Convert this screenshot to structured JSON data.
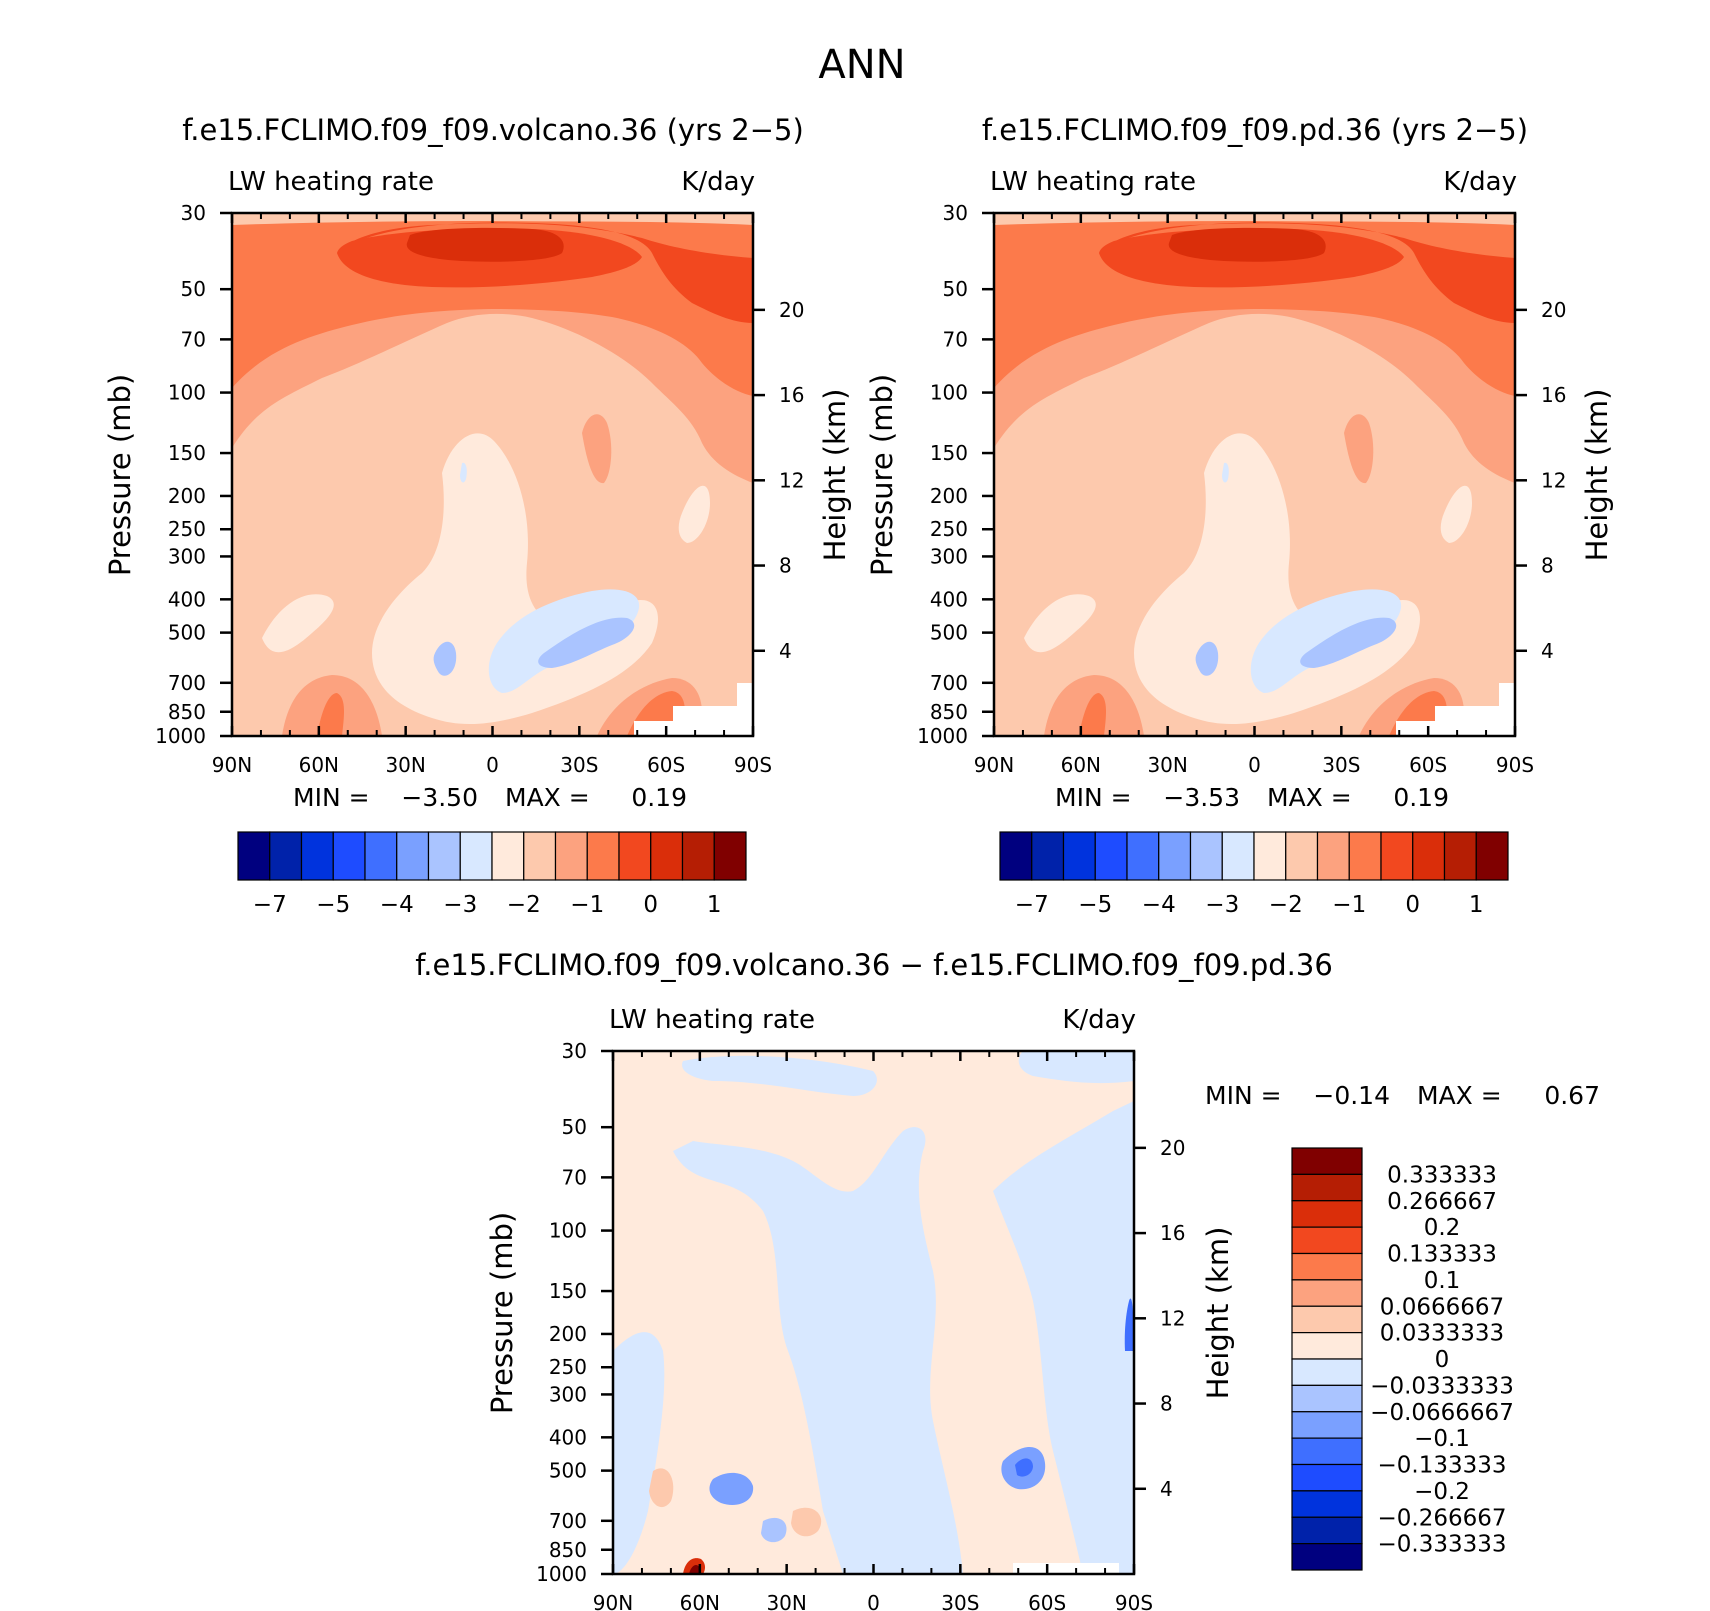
{
  "figure": {
    "title": "ANN"
  },
  "panels": [
    {
      "title": "f.e15.FCLIMO.f09_f09.volcano.36 (yrs 2−5)",
      "left_label": "LW heating rate",
      "right_label": "K/day",
      "ylabel": "Pressure (mb)",
      "y2label": "Height (km)",
      "min_text": "MIN =",
      "min_value": "−3.50",
      "max_text": "MAX =",
      "max_value": "0.19"
    },
    {
      "title": "f.e15.FCLIMO.f09_f09.pd.36 (yrs 2−5)",
      "left_label": "LW heating rate",
      "right_label": "K/day",
      "ylabel": "Pressure (mb)",
      "y2label": "Height (km)",
      "min_text": "MIN =",
      "min_value": "−3.53",
      "max_text": "MAX =",
      "max_value": "0.19"
    },
    {
      "title": "f.e15.FCLIMO.f09_f09.volcano.36 − f.e15.FCLIMO.f09_f09.pd.36",
      "left_label": "LW heating rate",
      "right_label": "K/day",
      "ylabel": "Pressure (mb)",
      "y2label": "Height (km)",
      "min_text": "MIN =",
      "min_value": "−0.14",
      "max_text": "MAX =",
      "max_value": "0.67"
    }
  ],
  "chart_data": [
    {
      "type": "heatmap",
      "title": "f.e15.FCLIMO.f09_f09.volcano.36 (yrs 2−5)",
      "variable": "LW heating rate",
      "units": "K/day",
      "xlabel": "",
      "ylabel": "Pressure (mb)",
      "y2label": "Height (km)",
      "x_ticks": [
        "90N",
        "60N",
        "30N",
        "0",
        "30S",
        "60S",
        "90S"
      ],
      "y_ticks": [
        30,
        50,
        70,
        100,
        150,
        200,
        250,
        300,
        400,
        500,
        700,
        850,
        1000
      ],
      "y2_ticks": [
        20,
        16,
        12,
        8,
        4
      ],
      "y_scale": "log",
      "min": -3.5,
      "max": 0.19,
      "colorbar_labels": [
        "−7",
        "−5",
        "−4",
        "−3",
        "−2",
        "−1",
        "0",
        "1"
      ],
      "colorbar_colors": [
        "#00007f",
        "#0022aa",
        "#0033dd",
        "#1e4cff",
        "#3f6fff",
        "#7aa0ff",
        "#aac4ff",
        "#d8e8ff",
        "#ffeadc",
        "#fdc9ad",
        "#fca27f",
        "#fc7a4b",
        "#f2481f",
        "#da2e0a",
        "#b51e04",
        "#800000"
      ]
    },
    {
      "type": "heatmap",
      "title": "f.e15.FCLIMO.f09_f09.pd.36 (yrs 2−5)",
      "variable": "LW heating rate",
      "units": "K/day",
      "xlabel": "",
      "ylabel": "Pressure (mb)",
      "y2label": "Height (km)",
      "x_ticks": [
        "90N",
        "60N",
        "30N",
        "0",
        "30S",
        "60S",
        "90S"
      ],
      "y_ticks": [
        30,
        50,
        70,
        100,
        150,
        200,
        250,
        300,
        400,
        500,
        700,
        850,
        1000
      ],
      "y2_ticks": [
        20,
        16,
        12,
        8,
        4
      ],
      "y_scale": "log",
      "min": -3.53,
      "max": 0.19,
      "colorbar_labels": [
        "−7",
        "−5",
        "−4",
        "−3",
        "−2",
        "−1",
        "0",
        "1"
      ],
      "colorbar_colors": [
        "#00007f",
        "#0022aa",
        "#0033dd",
        "#1e4cff",
        "#3f6fff",
        "#7aa0ff",
        "#aac4ff",
        "#d8e8ff",
        "#ffeadc",
        "#fdc9ad",
        "#fca27f",
        "#fc7a4b",
        "#f2481f",
        "#da2e0a",
        "#b51e04",
        "#800000"
      ]
    },
    {
      "type": "heatmap",
      "title": "f.e15.FCLIMO.f09_f09.volcano.36 − f.e15.FCLIMO.f09_f09.pd.36",
      "variable": "LW heating rate",
      "units": "K/day",
      "xlabel": "",
      "ylabel": "Pressure (mb)",
      "y2label": "Height (km)",
      "x_ticks": [
        "90N",
        "60N",
        "30N",
        "0",
        "30S",
        "60S",
        "90S"
      ],
      "y_ticks": [
        30,
        50,
        70,
        100,
        150,
        200,
        250,
        300,
        400,
        500,
        700,
        850,
        1000
      ],
      "y2_ticks": [
        20,
        16,
        12,
        8,
        4
      ],
      "y_scale": "log",
      "min": -0.14,
      "max": 0.67,
      "colorbar_labels": [
        "0.333333",
        "0.266667",
        "0.2",
        "0.133333",
        "0.1",
        "0.0666667",
        "0.0333333",
        "0",
        "−0.0333333",
        "−0.0666667",
        "−0.1",
        "−0.133333",
        "−0.2",
        "−0.266667",
        "−0.333333"
      ],
      "colorbar_colors": [
        "#800000",
        "#b51e04",
        "#da2e0a",
        "#f2481f",
        "#fc7a4b",
        "#fca27f",
        "#fdc9ad",
        "#ffeadc",
        "#d8e8ff",
        "#aac4ff",
        "#7aa0ff",
        "#3f6fff",
        "#1e4cff",
        "#0033dd",
        "#0022aa",
        "#00007f"
      ]
    }
  ]
}
